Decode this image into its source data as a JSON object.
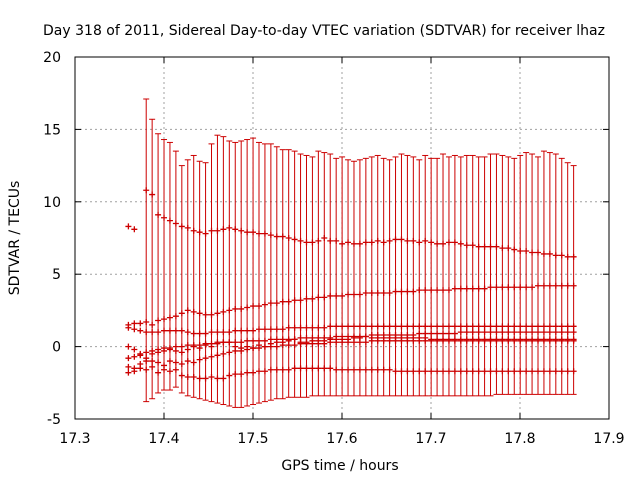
{
  "chart_data": {
    "type": "scatter",
    "title": "Day 318 of 2011, Sidereal Day-to-day VTEC variation (SDTVAR) for receiver lhaz",
    "xlabel": "GPS time / hours",
    "ylabel": "SDTVAR / TECUs",
    "xlim": [
      17.3,
      17.9
    ],
    "ylim": [
      -5,
      20
    ],
    "xticks": [
      "17.3",
      "17.4",
      "17.5",
      "17.6",
      "17.7",
      "17.8",
      "17.9"
    ],
    "yticks": [
      "-5",
      "0",
      "5",
      "10",
      "15",
      "20"
    ],
    "grid": true,
    "color": "#cc0000",
    "marker": "errorbar-plus",
    "x_start": 17.36,
    "x_step": 0.00667,
    "series": [
      {
        "name": "upper",
        "values": [
          8.3,
          8.1,
          null,
          10.8,
          10.5,
          9.1,
          8.9,
          8.7,
          8.5,
          8.3,
          8.2,
          8.0,
          7.9,
          7.8,
          8.0,
          8.0,
          8.1,
          8.2,
          8.1,
          8.0,
          7.9,
          7.9,
          7.8,
          7.8,
          7.7,
          7.6,
          7.6,
          7.5,
          7.4,
          7.3,
          7.2,
          7.2,
          7.3,
          7.5,
          7.3,
          7.3,
          7.1,
          7.2,
          7.1,
          7.1,
          7.2,
          7.2,
          7.3,
          7.2,
          7.3,
          7.4,
          7.4,
          7.3,
          7.3,
          7.2,
          7.3,
          7.2,
          7.1,
          7.1,
          7.2,
          7.2,
          7.1,
          7.0,
          7.0,
          6.9,
          6.9,
          6.9,
          6.9,
          6.8,
          6.8,
          6.7,
          6.6,
          6.6,
          6.5,
          6.5,
          6.4,
          6.4,
          6.3,
          6.3,
          6.2,
          6.2
        ]
      },
      {
        "name": "upper-mid",
        "values": [
          1.5,
          1.6,
          1.6,
          1.7,
          1.5,
          1.8,
          1.9,
          2.0,
          2.1,
          2.3,
          2.5,
          2.4,
          2.3,
          2.2,
          2.2,
          2.3,
          2.4,
          2.5,
          2.6,
          2.6,
          2.7,
          2.8,
          2.8,
          2.9,
          3.0,
          3.0,
          3.1,
          3.1,
          3.2,
          3.2,
          3.3,
          3.3,
          3.4,
          3.4,
          3.5,
          3.5,
          3.5,
          3.6,
          3.6,
          3.6,
          3.7,
          3.7,
          3.7,
          3.7,
          3.7,
          3.8,
          3.8,
          3.8,
          3.8,
          3.9,
          3.9,
          3.9,
          3.9,
          3.9,
          3.9,
          4.0,
          4.0,
          4.0,
          4.0,
          4.0,
          4.0,
          4.1,
          4.1,
          4.1,
          4.1,
          4.1,
          4.1,
          4.1,
          4.1,
          4.2,
          4.2,
          4.2,
          4.2,
          4.2,
          4.2,
          4.2
        ]
      },
      {
        "name": "middle",
        "values": [
          1.3,
          1.2,
          1.1,
          1.0,
          1.0,
          1.0,
          1.1,
          1.1,
          1.1,
          1.1,
          1.0,
          0.9,
          0.9,
          0.9,
          1.0,
          1.0,
          1.0,
          1.0,
          1.1,
          1.1,
          1.1,
          1.1,
          1.2,
          1.2,
          1.2,
          1.2,
          1.2,
          1.3,
          1.3,
          1.3,
          1.3,
          1.3,
          1.3,
          1.3,
          1.4,
          1.4,
          1.4,
          1.4,
          1.4,
          1.4,
          1.4,
          1.4,
          1.4,
          1.4,
          1.4,
          1.4,
          1.4,
          1.4,
          1.4,
          1.4,
          1.4,
          1.4,
          1.4,
          1.4,
          1.4,
          1.4,
          1.4,
          1.4,
          1.4,
          1.4,
          1.4,
          1.4,
          1.4,
          1.4,
          1.4,
          1.4,
          1.4,
          1.4,
          1.4,
          1.4,
          1.4,
          1.4,
          1.4,
          1.4,
          1.4,
          1.4
        ]
      },
      {
        "name": "lower-mid",
        "values": [
          -0.8,
          -0.7,
          -0.5,
          -0.4,
          -0.3,
          -0.2,
          -0.1,
          -0.1,
          0.0,
          0.0,
          0.1,
          0.1,
          0.1,
          0.2,
          0.2,
          0.2,
          0.3,
          0.3,
          0.3,
          0.3,
          0.4,
          0.4,
          0.4,
          0.4,
          0.5,
          0.5,
          0.5,
          0.5,
          0.5,
          0.6,
          0.6,
          0.6,
          0.6,
          0.6,
          0.6,
          0.7,
          0.7,
          0.7,
          0.7,
          0.7,
          0.7,
          0.8,
          0.8,
          0.8,
          0.8,
          0.8,
          0.8,
          0.8,
          0.8,
          0.9,
          0.9,
          0.9,
          0.9,
          0.9,
          0.9,
          0.9,
          1.0,
          1.0,
          1.0,
          1.0,
          1.0,
          1.0,
          1.0,
          1.0,
          1.0,
          1.0,
          1.0,
          1.0,
          1.0,
          1.0,
          1.0,
          1.0,
          1.0,
          1.0,
          1.0,
          1.0
        ]
      },
      {
        "name": "lower",
        "values": [
          -1.8,
          -1.7,
          -1.5,
          -1.6,
          -1.4,
          -1.8,
          -1.6,
          -1.7,
          -1.6,
          -2.0,
          -2.1,
          -2.1,
          -2.2,
          -2.2,
          -2.1,
          -2.2,
          -2.2,
          -2.0,
          -1.9,
          -1.9,
          -1.8,
          -1.8,
          -1.7,
          -1.7,
          -1.6,
          -1.6,
          -1.6,
          -1.6,
          -1.5,
          -1.5,
          -1.5,
          -1.5,
          -1.5,
          -1.5,
          -1.5,
          -1.6,
          -1.6,
          -1.6,
          -1.6,
          -1.6,
          -1.6,
          -1.6,
          -1.6,
          -1.6,
          -1.6,
          -1.7,
          -1.7,
          -1.7,
          -1.7,
          -1.7,
          -1.7,
          -1.7,
          -1.7,
          -1.7,
          -1.7,
          -1.7,
          -1.7,
          -1.7,
          -1.7,
          -1.7,
          -1.7,
          -1.7,
          -1.7,
          -1.7,
          -1.7,
          -1.7,
          -1.7,
          -1.7,
          -1.7,
          -1.7,
          -1.7,
          -1.7,
          -1.7,
          -1.7,
          -1.7,
          -1.7
        ]
      },
      {
        "name": "scatter-a",
        "values": [
          0.0,
          -0.2,
          -0.6,
          -0.8,
          -0.5,
          -0.4,
          -0.3,
          -0.2,
          -0.3,
          -0.4,
          -0.2,
          0.0,
          -0.1,
          0.1,
          0.0,
          0.3,
          0.3,
          0.3,
          0.0,
          -0.1,
          0.0,
          -0.1,
          0.1,
          0.0,
          0.2,
          0.3,
          0.3,
          0.4,
          0.5,
          0.3,
          0.3,
          0.4,
          0.4,
          0.4,
          0.5,
          0.5,
          0.5,
          0.5,
          0.6,
          0.6,
          0.7,
          0.6,
          0.6,
          0.6,
          0.6,
          0.6,
          0.6,
          0.6,
          0.6,
          0.6,
          0.6,
          0.5,
          0.5,
          0.5,
          0.5,
          0.5,
          0.5,
          0.5,
          0.5,
          0.5,
          0.5,
          0.5,
          0.5,
          0.5,
          0.5,
          0.5,
          0.5,
          0.5,
          0.5,
          0.5,
          0.5,
          0.5,
          0.5,
          0.5,
          0.5,
          0.5
        ]
      },
      {
        "name": "scatter-b",
        "values": [
          -1.4,
          -1.5,
          -1.2,
          -1.0,
          -1.0,
          -1.1,
          -1.3,
          -1.0,
          -1.1,
          -1.2,
          -1.0,
          -1.1,
          -0.9,
          -0.8,
          -0.7,
          -0.6,
          -0.5,
          -0.4,
          -0.3,
          -0.3,
          -0.2,
          -0.1,
          -0.1,
          0.0,
          0.0,
          0.0,
          0.1,
          0.1,
          0.1,
          0.2,
          0.2,
          0.2,
          0.2,
          0.2,
          0.3,
          0.3,
          0.3,
          0.3,
          0.3,
          0.3,
          0.3,
          0.4,
          0.4,
          0.4,
          0.4,
          0.4,
          0.4,
          0.4,
          0.4,
          0.4,
          0.4,
          0.4,
          0.4,
          0.4,
          0.4,
          0.4,
          0.4,
          0.4,
          0.4,
          0.4,
          0.4,
          0.4,
          0.4,
          0.4,
          0.4,
          0.4,
          0.4,
          0.4,
          0.4,
          0.4,
          0.4,
          0.4,
          0.4,
          0.4,
          0.4,
          0.4
        ]
      }
    ],
    "error_bars": {
      "upper": [
        null,
        null,
        null,
        17.1,
        15.7,
        14.7,
        14.3,
        14.1,
        13.5,
        12.5,
        12.9,
        13.2,
        12.8,
        12.7,
        14.0,
        14.6,
        14.5,
        14.2,
        14.1,
        14.2,
        14.3,
        14.4,
        14.1,
        14.0,
        14.0,
        13.8,
        13.6,
        13.6,
        13.5,
        13.3,
        13.2,
        13.1,
        13.5,
        13.4,
        13.3,
        13.0,
        13.1,
        12.9,
        12.8,
        12.9,
        13.0,
        13.1,
        13.2,
        13.0,
        12.9,
        13.1,
        13.3,
        13.2,
        13.1,
        12.9,
        13.2,
        13.0,
        13.0,
        13.3,
        13.1,
        13.2,
        13.1,
        13.2,
        13.2,
        13.1,
        13.1,
        13.3,
        13.3,
        13.2,
        13.1,
        13.0,
        13.2,
        13.4,
        13.3,
        13.1,
        13.5,
        13.4,
        13.3,
        13.0,
        12.7,
        12.5
      ],
      "lower": [
        null,
        null,
        null,
        -3.8,
        -3.6,
        -3.2,
        -3.0,
        -3.0,
        -2.8,
        -3.2,
        -3.4,
        -3.5,
        -3.6,
        -3.7,
        -3.8,
        -3.9,
        -4.0,
        -4.1,
        -4.2,
        -4.2,
        -4.1,
        -4.0,
        -3.9,
        -3.8,
        -3.7,
        -3.6,
        -3.6,
        -3.5,
        -3.5,
        -3.5,
        -3.5,
        -3.4,
        -3.4,
        -3.4,
        -3.4,
        -3.4,
        -3.4,
        -3.4,
        -3.4,
        -3.4,
        -3.4,
        -3.4,
        -3.4,
        -3.4,
        -3.4,
        -3.4,
        -3.4,
        -3.4,
        -3.4,
        -3.4,
        -3.4,
        -3.4,
        -3.4,
        -3.4,
        -3.4,
        -3.4,
        -3.4,
        -3.4,
        -3.4,
        -3.4,
        -3.4,
        -3.4,
        -3.3,
        -3.3,
        -3.3,
        -3.3,
        -3.3,
        -3.3,
        -3.3,
        -3.3,
        -3.3,
        -3.3,
        -3.3,
        -3.3,
        -3.3,
        -3.3
      ]
    }
  }
}
